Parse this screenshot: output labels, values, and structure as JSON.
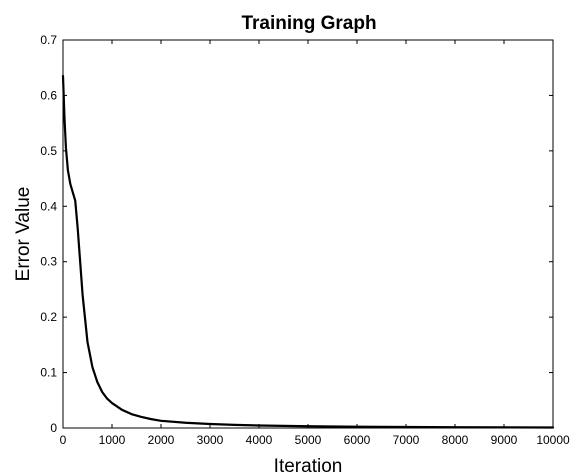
{
  "chart_data": {
    "type": "line",
    "title": "Training Graph",
    "xlabel": "Iteration",
    "ylabel": "Error Value",
    "xlim": [
      0,
      10000
    ],
    "ylim": [
      0,
      0.7
    ],
    "xticks": [
      0,
      1000,
      2000,
      3000,
      4000,
      5000,
      6000,
      7000,
      8000,
      9000,
      10000
    ],
    "yticks": [
      0,
      0.1,
      0.2,
      0.3,
      0.4,
      0.5,
      0.6,
      0.7
    ],
    "grid": false,
    "legend": "none",
    "line_color": "#000000",
    "series": [
      {
        "x": [
          0,
          30,
          60,
          100,
          150,
          200,
          250,
          300,
          350,
          400,
          500,
          600,
          700,
          800,
          900,
          1000,
          1200,
          1400,
          1600,
          1800,
          2000,
          2500,
          3000,
          3500,
          4000,
          5000,
          6000,
          7000,
          8000,
          9000,
          10000
        ],
        "y": [
          0.635,
          0.56,
          0.505,
          0.465,
          0.44,
          0.425,
          0.41,
          0.36,
          0.3,
          0.24,
          0.155,
          0.11,
          0.083,
          0.065,
          0.053,
          0.045,
          0.033,
          0.025,
          0.02,
          0.016,
          0.013,
          0.0095,
          0.0072,
          0.0057,
          0.0045,
          0.0032,
          0.0024,
          0.0018,
          0.0014,
          0.0011,
          0.0009
        ]
      }
    ]
  }
}
